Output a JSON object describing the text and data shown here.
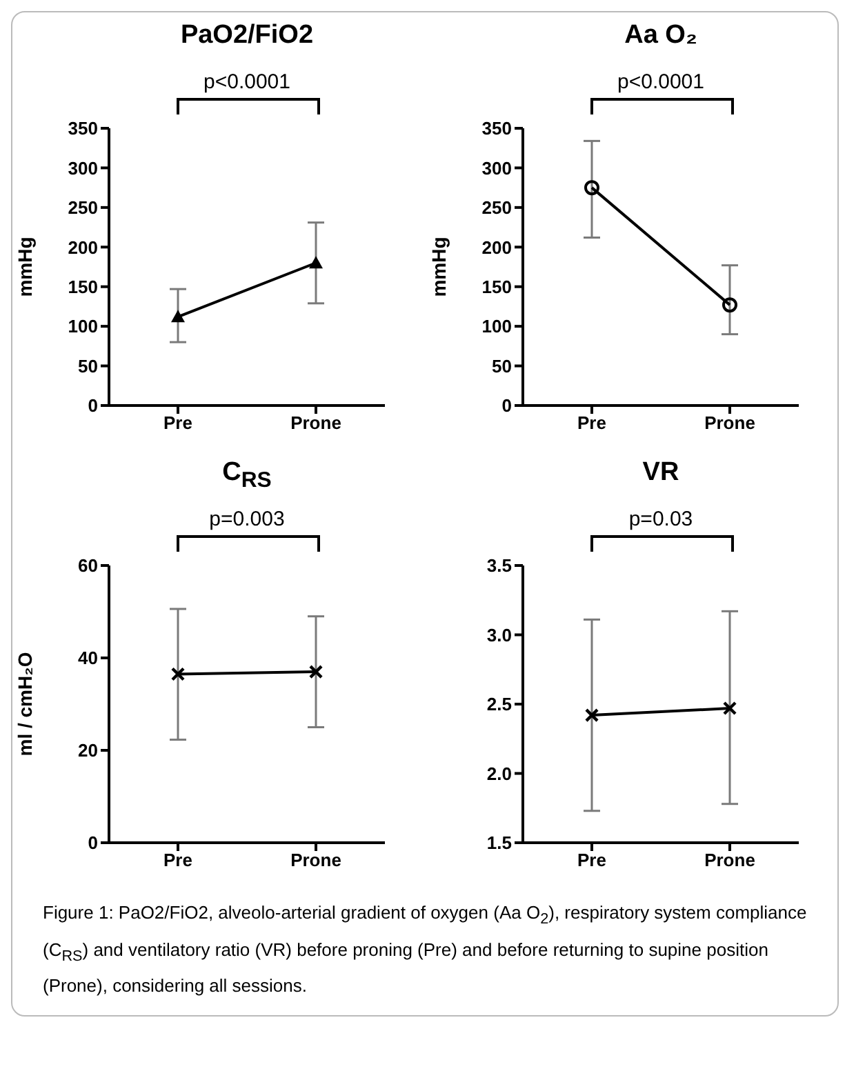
{
  "chart_data": [
    {
      "type": "line",
      "title": "PaO2/FiO2",
      "ylabel": "mmHg",
      "categories": [
        "Pre",
        "Prone"
      ],
      "marker": "triangle",
      "ylim": [
        0,
        350
      ],
      "yticks": [
        0,
        50,
        100,
        150,
        200,
        250,
        300,
        350
      ],
      "grid": false,
      "legend": false,
      "series": [
        {
          "color": "#000000",
          "values": [
            112,
            180
          ],
          "errors": [
            [
              80,
              147
            ],
            [
              129,
              231
            ]
          ]
        }
      ],
      "annotations": [
        "p<0.0001"
      ]
    },
    {
      "type": "line",
      "title": "Aa O₂",
      "ylabel": "mmHg",
      "categories": [
        "Pre",
        "Prone"
      ],
      "marker": "circle",
      "ylim": [
        0,
        350
      ],
      "yticks": [
        0,
        50,
        100,
        150,
        200,
        250,
        300,
        350
      ],
      "grid": false,
      "legend": false,
      "series": [
        {
          "color": "#000000",
          "values": [
            275,
            127
          ],
          "errors": [
            [
              212,
              334
            ],
            [
              90,
              177
            ]
          ]
        }
      ],
      "annotations": [
        "p<0.0001"
      ]
    },
    {
      "type": "line",
      "title": "C$_{RS}$",
      "ylabel": "ml / cmH₂O",
      "categories": [
        "Pre",
        "Prone"
      ],
      "marker": "cross",
      "ylim": [
        0,
        60
      ],
      "yticks": [
        0,
        20,
        40,
        60
      ],
      "grid": false,
      "legend": false,
      "series": [
        {
          "color": "#000000",
          "values": [
            36.5,
            37
          ],
          "errors": [
            [
              22.3,
              50.6
            ],
            [
              25,
              49
            ]
          ]
        }
      ],
      "annotations": [
        "p=0.003"
      ]
    },
    {
      "type": "line",
      "title": "VR",
      "categories": [
        "Pre",
        "Prone"
      ],
      "marker": "cross",
      "ylim": [
        1.5,
        3.5
      ],
      "yticks": [
        {
          "value": 1.5,
          "label": "1.5"
        },
        {
          "value": 2,
          "label": "2.0"
        },
        {
          "value": 2.5,
          "label": "2.5"
        },
        {
          "value": 3,
          "label": "3.0"
        },
        {
          "value": 3.5,
          "label": "3.5"
        }
      ],
      "grid": false,
      "legend": false,
      "series": [
        {
          "color": "#000000",
          "values": [
            2.42,
            2.47
          ],
          "errors": [
            [
              1.73,
              3.11
            ],
            [
              1.78,
              3.17
            ]
          ]
        }
      ],
      "annotations": [
        "p=0.03",
        "Figure 1: PaO2/FiO2, alveolo-arterial gradient of oxygen (Aa O$_{2}$), respiratory system compliance (C$_{RS}$) and ventilatory ratio (VR) before proning (Pre) and before returning to supine position (Prone), considering all sessions."
      ]
    }
  ]
}
